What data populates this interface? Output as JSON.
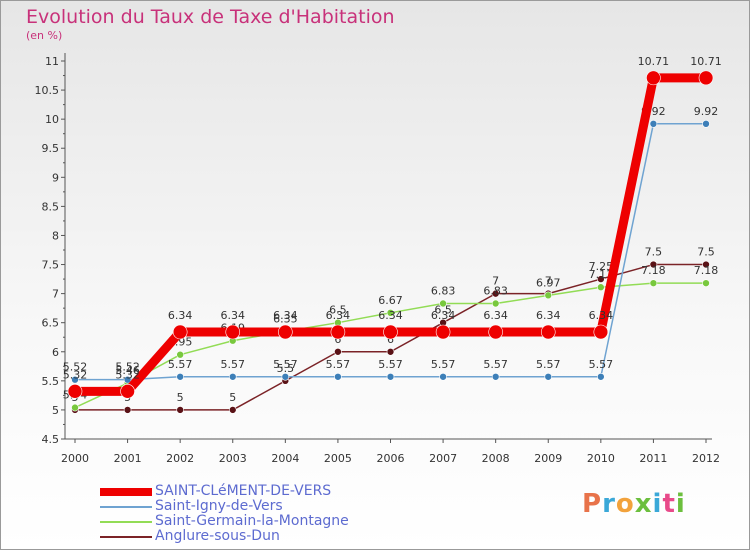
{
  "title": "Evolution du Taux de Taxe d'Habitation",
  "subtitle": "(en %)",
  "logo": [
    "P",
    "r",
    "o",
    "x",
    "i",
    "t",
    "i"
  ],
  "colors": {
    "logo": [
      "#e8734a",
      "#3aa8d8",
      "#f2a23c",
      "#6cbf3e",
      "#3aa8d8",
      "#e84a8a",
      "#6cbf3e"
    ]
  },
  "chart_data": {
    "type": "line",
    "title": "Evolution du Taux de Taxe d'Habitation",
    "ylabel": "(en %)",
    "xlabel": "",
    "ylim": [
      4.5,
      11
    ],
    "yticks": [
      "4.5",
      "5",
      "5.5",
      "6",
      "6.5",
      "7",
      "7.5",
      "8",
      "8.5",
      "9",
      "9.5",
      "10",
      "10.5",
      "11"
    ],
    "categories": [
      "2000",
      "2001",
      "2002",
      "2003",
      "2004",
      "2005",
      "2006",
      "2007",
      "2008",
      "2009",
      "2010",
      "2011",
      "2012"
    ],
    "series": [
      {
        "name": "SAINT-CLéMENT-DE-VERS",
        "color": "#ee0000",
        "values": [
          5.32,
          5.32,
          6.34,
          6.34,
          6.34,
          6.34,
          6.34,
          6.34,
          6.34,
          6.34,
          6.34,
          10.71,
          10.71
        ],
        "labels": [
          "5.32",
          "5.32",
          "6.34",
          "6.34",
          "6.34",
          "6.34",
          "6.34",
          "6.34",
          "6.34",
          "6.34",
          "6.34",
          "10.71",
          "10.71"
        ]
      },
      {
        "name": "Saint-Igny-de-Vers",
        "color": "#6fa3d1",
        "values": [
          5.52,
          5.52,
          5.57,
          5.57,
          5.57,
          5.57,
          5.57,
          5.57,
          5.57,
          5.57,
          5.57,
          9.92,
          9.92
        ],
        "labels": [
          "5.52",
          "5.52",
          "5.57",
          "5.57",
          "5.57",
          "5.57",
          "5.57",
          "5.57",
          "5.57",
          "5.57",
          "5.57",
          "9.92",
          "9.92"
        ]
      },
      {
        "name": "Saint-Germain-la-Montagne",
        "color": "#92dc55",
        "values": [
          5.04,
          5.46,
          5.95,
          6.19,
          6.35,
          6.5,
          6.67,
          6.83,
          6.83,
          6.97,
          7.11,
          7.18,
          7.18
        ],
        "labels": [
          "5.04",
          "5.46",
          "5.95",
          "6.19",
          "6.35",
          "6.5",
          "6.67",
          "6.83",
          "6.83",
          "6.97",
          "7.11",
          "7.18",
          "7.18"
        ]
      },
      {
        "name": "Anglure-sous-Dun",
        "color": "#7b2327",
        "values": [
          5,
          5,
          5,
          5,
          5.5,
          6,
          6,
          6.5,
          7,
          7,
          7.25,
          7.5,
          7.5
        ],
        "labels": [
          "5",
          "5",
          "5",
          "5",
          "5.5",
          "6",
          "6",
          "6.5",
          "7",
          "7",
          "7.25",
          "7.5",
          "7.5"
        ]
      }
    ],
    "grid": false,
    "legend_position": "bottom-left"
  }
}
